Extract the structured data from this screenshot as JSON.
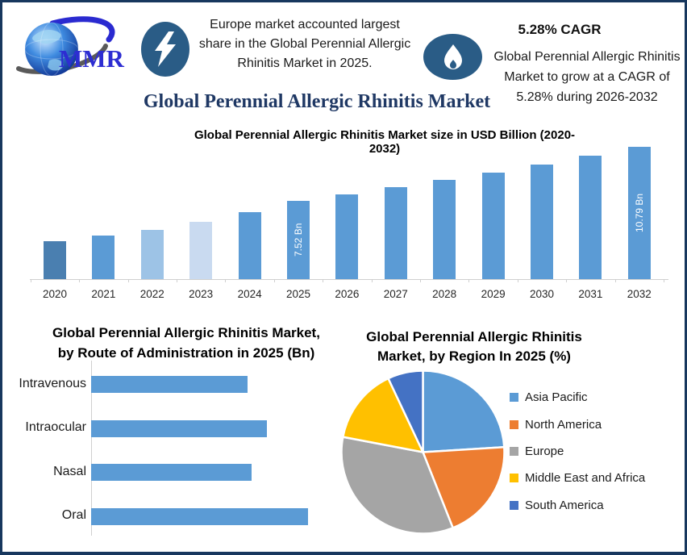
{
  "header": {
    "europe_note": "Europe market accounted largest share in the Global Perennial Allergic Rhinitis Market in 2025.",
    "cagr_title": "5.28% CAGR",
    "cagr_text": "Global Perennial Allergic Rhinitis Market to grow at a CAGR of 5.28% during 2026-2032"
  },
  "logo": {
    "text": "MMR"
  },
  "main_title": "Global Perennial Allergic Rhinitis Market",
  "colors": {
    "frame_border": "#17375e",
    "accent_circle": "#2a5c86",
    "title_navy": "#1f3864",
    "logo_blue": "#2d2dd2",
    "bar_blue": "#5b9bd5",
    "axis_gray": "#cfcfcf"
  },
  "chart_data": [
    {
      "id": "market_size_by_year",
      "type": "bar",
      "title": "Global Perennial Allergic Rhinitis Market size in USD Billion (2020-2032)",
      "unit": "USD Billion",
      "categories": [
        "2020",
        "2021",
        "2022",
        "2023",
        "2024",
        "2025",
        "2026",
        "2027",
        "2028",
        "2029",
        "2030",
        "2031",
        "2032"
      ],
      "values": [
        5.13,
        5.47,
        5.81,
        6.29,
        6.88,
        7.52,
        7.92,
        8.34,
        8.78,
        9.24,
        9.73,
        10.24,
        10.79
      ],
      "data_labels": {
        "2025": "7.52 Bn",
        "2032": "10.79 Bn"
      },
      "bar_colors": [
        "#4a7fb0",
        "#5b9bd5",
        "#9dc3e6",
        "#c9daf0",
        "#5b9bd5",
        "#5b9bd5",
        "#5b9bd5",
        "#5b9bd5",
        "#5b9bd5",
        "#5b9bd5",
        "#5b9bd5",
        "#5b9bd5",
        "#5b9bd5"
      ],
      "grid": false,
      "xlabel": "",
      "ylabel": ""
    },
    {
      "id": "by_route_of_administration",
      "type": "bar",
      "orientation": "horizontal",
      "title": "Global Perennial Allergic Rhinitis Market, by Route of Administration in 2025 (Bn)",
      "categories": [
        "Intravenous",
        "Intraocular",
        "Nasal",
        "Oral"
      ],
      "values_relative": [
        0.72,
        0.81,
        0.74,
        1.0
      ],
      "bar_color": "#5b9bd5",
      "grid": false
    },
    {
      "id": "by_region_2025",
      "type": "pie",
      "title": "Global Perennial Allergic Rhinitis Market, by Region In 2025 (%)",
      "legend_position": "right",
      "slices": [
        {
          "label": "Asia Pacific",
          "value": 24,
          "color": "#5b9bd5"
        },
        {
          "label": "North America",
          "value": 20,
          "color": "#ed7d31"
        },
        {
          "label": "Europe",
          "value": 34,
          "color": "#a5a5a5"
        },
        {
          "label": "Middle East and Africa",
          "value": 15,
          "color": "#ffc000"
        },
        {
          "label": "South America",
          "value": 7,
          "color": "#4472c4"
        }
      ]
    }
  ]
}
